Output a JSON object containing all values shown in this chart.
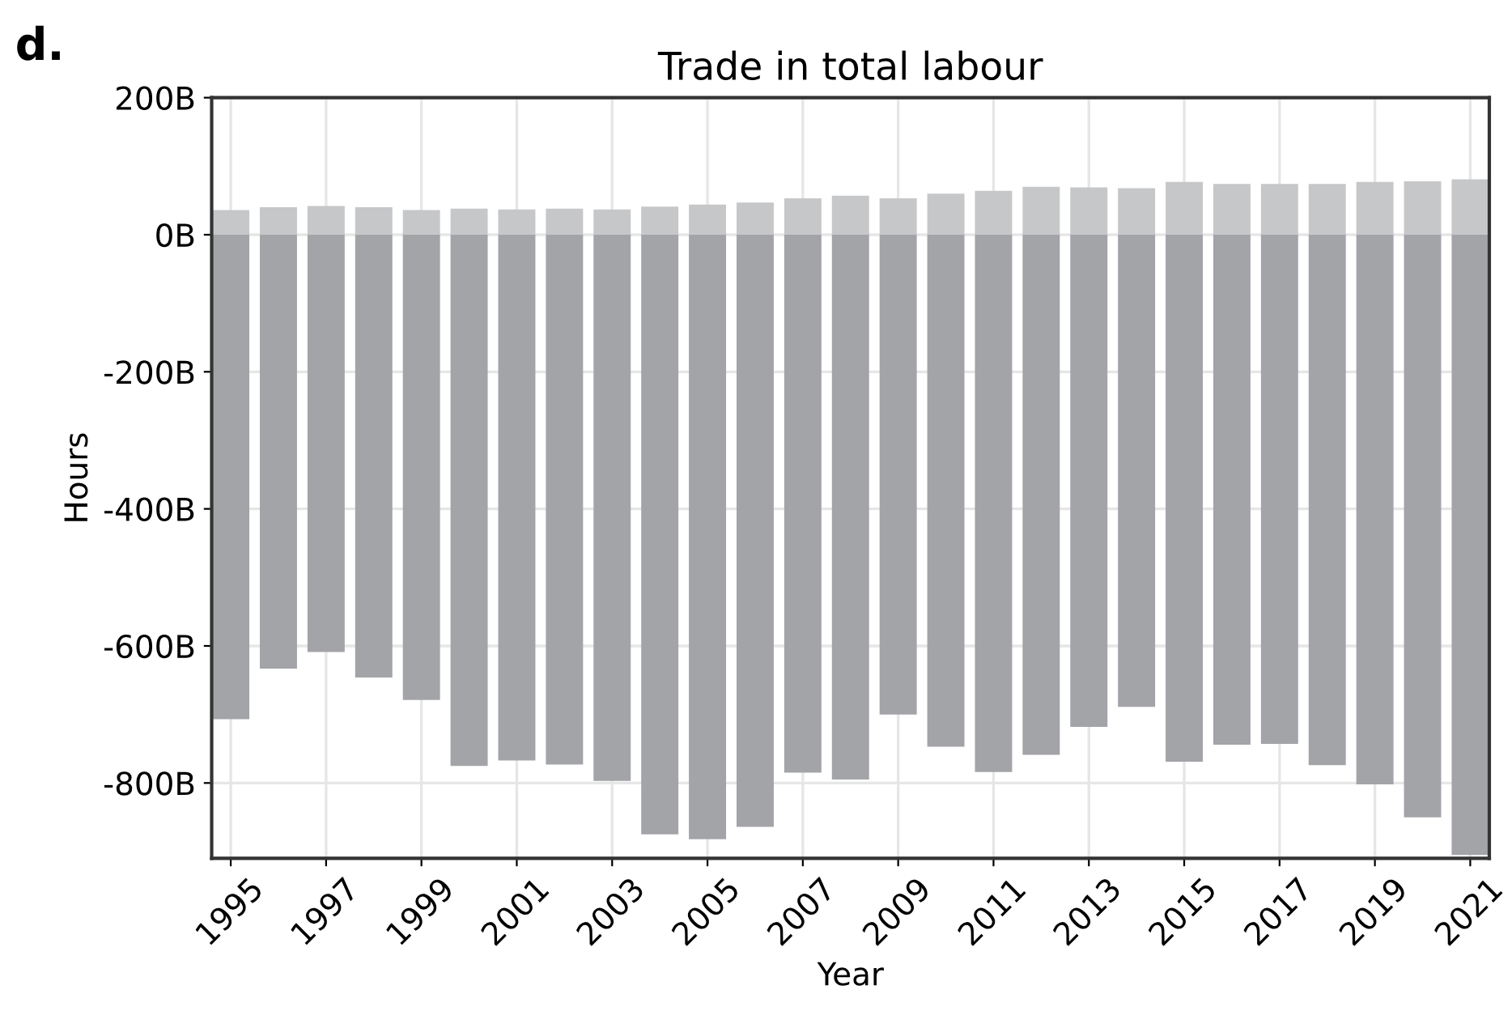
{
  "chart_data": {
    "type": "bar",
    "title": "Trade in total labour",
    "xlabel": "Year",
    "ylabel": "Hours",
    "annotations": [
      "d."
    ],
    "x": [
      1995,
      1996,
      1997,
      1998,
      1999,
      2000,
      2001,
      2002,
      2003,
      2004,
      2005,
      2006,
      2007,
      2008,
      2009,
      2010,
      2011,
      2012,
      2013,
      2014,
      2015,
      2016,
      2017,
      2018,
      2019,
      2020,
      2021
    ],
    "series": [
      {
        "color": "#c6c7c9",
        "values": [
          36,
          40,
          42,
          40,
          36,
          38,
          37,
          38,
          37,
          41,
          44,
          47,
          53,
          57,
          53,
          60,
          64,
          70,
          69,
          68,
          77,
          74,
          74,
          74,
          77,
          78,
          81
        ]
      },
      {
        "color": "#a3a4a8",
        "values": [
          -707,
          -633,
          -609,
          -646,
          -679,
          -775,
          -767,
          -773,
          -797,
          -875,
          -882,
          -864,
          -785,
          -795,
          -700,
          -747,
          -784,
          -759,
          -718,
          -689,
          -769,
          -744,
          -743,
          -774,
          -802,
          -850,
          -905
        ]
      }
    ],
    "xlim": [
      1994.6,
      2021.4
    ],
    "xticks": [
      1995,
      1997,
      1999,
      2001,
      2003,
      2005,
      2007,
      2009,
      2011,
      2013,
      2015,
      2017,
      2019,
      2021
    ],
    "ylim": [
      -910,
      200
    ],
    "yticks": [
      {
        "value": 200,
        "label": "200B"
      },
      {
        "value": 0,
        "label": "0B"
      },
      {
        "value": -200,
        "label": "-200B"
      },
      {
        "value": -400,
        "label": "-400B"
      },
      {
        "value": -600,
        "label": "-600B"
      },
      {
        "value": -800,
        "label": "-800B"
      }
    ],
    "grid": true,
    "stacked": true
  }
}
